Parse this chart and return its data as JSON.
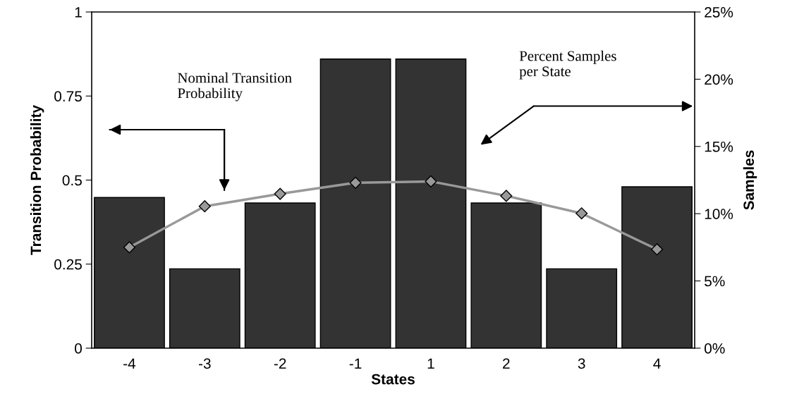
{
  "chart_data": {
    "type": "bar",
    "xlabel": "States",
    "ylabel": "Transition Probability",
    "y2label": "Samples",
    "categories": [
      "-4",
      "-3",
      "-2",
      "-1",
      "1",
      "2",
      "3",
      "4"
    ],
    "series": [
      {
        "axis": "y2",
        "color": "#333333",
        "values": [
          11.2,
          5.9,
          10.8,
          21.5,
          21.5,
          10.8,
          5.9,
          12.0
        ]
      },
      {
        "type": "line",
        "axis": "y",
        "color": "#999999",
        "marker": "diamond",
        "values": [
          0.3,
          0.422,
          0.459,
          0.492,
          0.496,
          0.453,
          0.401,
          0.294
        ]
      }
    ],
    "ylim": [
      0,
      1
    ],
    "yticks": [
      0,
      {
        "value": 0.25,
        "label": "0.25"
      },
      {
        "value": 0.5,
        "label": "0.5"
      },
      {
        "value": 0.75,
        "label": "0.75"
      },
      1
    ],
    "y2lim": [
      0,
      25
    ],
    "y2ticks": [
      {
        "value": 0,
        "label": "0%"
      },
      {
        "value": 5,
        "label": "5%"
      },
      {
        "value": 10,
        "label": "10%"
      },
      {
        "value": 15,
        "label": "15%"
      },
      {
        "value": 20,
        "label": "20%"
      },
      {
        "value": 25,
        "label": "25%"
      }
    ],
    "annotations": [
      "Nominal Transition\nProbability",
      "Percent Samples\nper State"
    ],
    "grid": false,
    "legend": false
  }
}
